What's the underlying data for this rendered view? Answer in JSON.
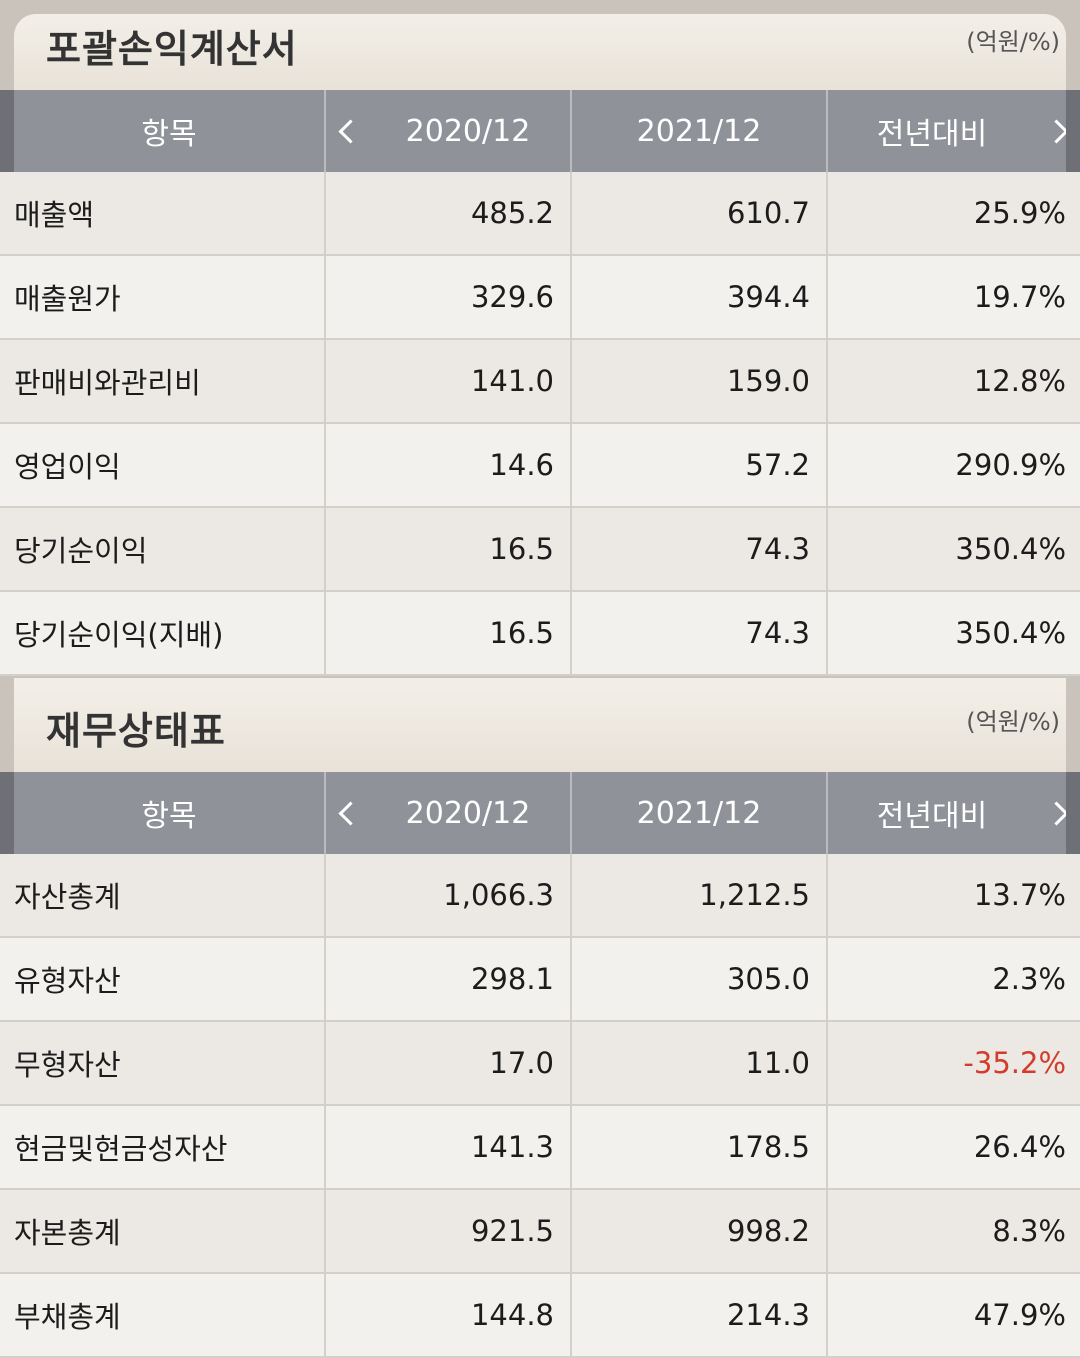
{
  "income_statement": {
    "title": "포괄손익계산서",
    "unit": "(억원/%)",
    "headers": {
      "item": "항목",
      "col1": "2020/12",
      "col2": "2021/12",
      "col3": "전년대비"
    },
    "rows": [
      {
        "item": "매출액",
        "v2020": "485.2",
        "v2021": "610.7",
        "yoy": "25.9%"
      },
      {
        "item": "매출원가",
        "v2020": "329.6",
        "v2021": "394.4",
        "yoy": "19.7%"
      },
      {
        "item": "판매비와관리비",
        "v2020": "141.0",
        "v2021": "159.0",
        "yoy": "12.8%"
      },
      {
        "item": "영업이익",
        "v2020": "14.6",
        "v2021": "57.2",
        "yoy": "290.9%"
      },
      {
        "item": "당기순이익",
        "v2020": "16.5",
        "v2021": "74.3",
        "yoy": "350.4%"
      },
      {
        "item": "당기순이익(지배)",
        "v2020": "16.5",
        "v2021": "74.3",
        "yoy": "350.4%"
      }
    ]
  },
  "balance_sheet": {
    "title": "재무상태표",
    "unit": "(억원/%)",
    "headers": {
      "item": "항목",
      "col1": "2020/12",
      "col2": "2021/12",
      "col3": "전년대비"
    },
    "rows": [
      {
        "item": "자산총계",
        "v2020": "1,066.3",
        "v2021": "1,212.5",
        "yoy": "13.7%"
      },
      {
        "item": "유형자산",
        "v2020": "298.1",
        "v2021": "305.0",
        "yoy": "2.3%"
      },
      {
        "item": "무형자산",
        "v2020": "17.0",
        "v2021": "11.0",
        "yoy": "-35.2%"
      },
      {
        "item": "현금및현금성자산",
        "v2020": "141.3",
        "v2021": "178.5",
        "yoy": "26.4%"
      },
      {
        "item": "자본총계",
        "v2020": "921.5",
        "v2021": "998.2",
        "yoy": "8.3%"
      },
      {
        "item": "부채총계",
        "v2020": "144.8",
        "v2021": "214.3",
        "yoy": "47.9%"
      }
    ]
  },
  "colors": {
    "negative": "#d33b2b",
    "header_bg": "#8f9298"
  },
  "icons": {
    "prev": "chevron-left-icon",
    "next": "chevron-right-icon"
  }
}
